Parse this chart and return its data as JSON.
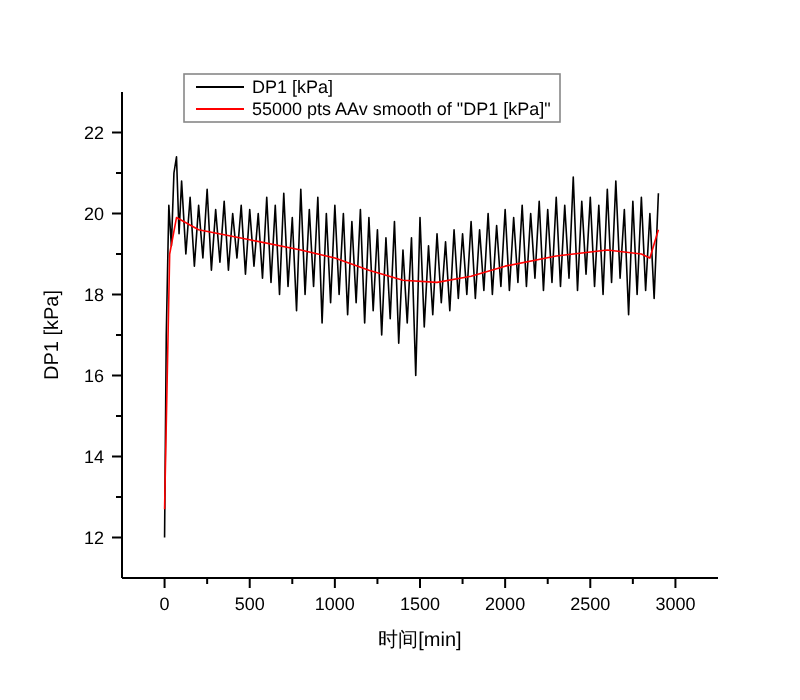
{
  "chart_data": {
    "type": "line",
    "xlabel": "时间[min]",
    "ylabel": "DP1 [kPa]",
    "xlim": [
      -250,
      3250
    ],
    "ylim": [
      11,
      23
    ],
    "xticks": [
      0,
      {
        "value": 250,
        "label": null
      },
      500,
      {
        "value": 750,
        "label": null
      },
      1000,
      {
        "value": 1250,
        "label": null
      },
      1500,
      {
        "value": 1750,
        "label": null
      },
      2000,
      {
        "value": 2250,
        "label": null
      },
      2500,
      {
        "value": 2750,
        "label": null
      },
      3000
    ],
    "yticks": [
      12,
      {
        "value": 13,
        "label": null
      },
      14,
      {
        "value": 15,
        "label": null
      },
      16,
      {
        "value": 17,
        "label": null
      },
      18,
      {
        "value": 19,
        "label": null
      },
      20,
      {
        "value": 21,
        "label": null
      },
      22
    ],
    "grid": false,
    "legend": "top left",
    "marker": "none",
    "line_style": "solid",
    "series": [
      {
        "name": "DP1 [kPa]",
        "color": "#000000",
        "x": [
          0,
          10,
          25,
          40,
          55,
          70,
          85,
          100,
          125,
          150,
          175,
          200,
          225,
          250,
          275,
          300,
          325,
          350,
          375,
          400,
          425,
          450,
          475,
          500,
          525,
          550,
          575,
          600,
          625,
          650,
          675,
          700,
          725,
          750,
          775,
          800,
          825,
          850,
          875,
          900,
          925,
          950,
          975,
          1000,
          1025,
          1050,
          1075,
          1100,
          1125,
          1150,
          1175,
          1200,
          1225,
          1250,
          1275,
          1300,
          1325,
          1350,
          1375,
          1400,
          1425,
          1450,
          1475,
          1500,
          1525,
          1550,
          1575,
          1600,
          1625,
          1650,
          1675,
          1700,
          1725,
          1750,
          1775,
          1800,
          1825,
          1850,
          1875,
          1900,
          1925,
          1950,
          1975,
          2000,
          2025,
          2050,
          2075,
          2100,
          2125,
          2150,
          2175,
          2200,
          2225,
          2250,
          2275,
          2300,
          2325,
          2350,
          2375,
          2400,
          2425,
          2450,
          2475,
          2500,
          2525,
          2550,
          2575,
          2600,
          2625,
          2650,
          2675,
          2700,
          2725,
          2750,
          2775,
          2800,
          2825,
          2850,
          2875,
          2900
        ],
        "values": [
          12,
          17,
          20.2,
          19.2,
          21.0,
          21.4,
          19.5,
          20.8,
          19.0,
          20.4,
          18.7,
          20.2,
          18.9,
          20.6,
          18.6,
          20.1,
          18.8,
          20.3,
          18.6,
          20.0,
          18.9,
          20.2,
          18.5,
          20.1,
          18.7,
          20.0,
          18.4,
          20.4,
          18.3,
          20.2,
          18.0,
          20.5,
          18.2,
          19.9,
          17.6,
          20.6,
          18.0,
          20.1,
          18.2,
          20.4,
          17.3,
          20.0,
          17.8,
          20.2,
          18.0,
          20.0,
          17.5,
          19.8,
          17.8,
          20.1,
          17.3,
          19.9,
          17.6,
          19.6,
          17.0,
          19.4,
          17.4,
          19.8,
          16.8,
          19.1,
          17.3,
          19.4,
          16.0,
          19.9,
          17.2,
          19.2,
          17.5,
          19.5,
          17.8,
          19.3,
          17.6,
          19.6,
          17.9,
          19.5,
          18.0,
          19.8,
          17.9,
          19.6,
          18.1,
          20.0,
          18.0,
          19.7,
          18.2,
          20.1,
          18.1,
          19.9,
          18.3,
          20.2,
          18.2,
          20.0,
          18.4,
          20.3,
          18.1,
          20.1,
          18.3,
          20.4,
          18.2,
          20.2,
          18.4,
          20.9,
          18.1,
          20.3,
          18.5,
          20.4,
          18.2,
          20.2,
          18.0,
          20.6,
          18.3,
          20.8,
          18.4,
          20.1,
          17.5,
          20.3,
          18.0,
          20.4,
          18.1,
          20.0,
          17.9,
          20.5
        ]
      },
      {
        "name": "55000 pts AAv smooth of \"DP1 [kPa]\"",
        "color": "#ff0000",
        "x": [
          0,
          30,
          70,
          200,
          500,
          800,
          1000,
          1200,
          1400,
          1600,
          1800,
          2000,
          2300,
          2600,
          2800,
          2850,
          2900
        ],
        "values": [
          12.7,
          19.0,
          19.9,
          19.6,
          19.35,
          19.1,
          18.9,
          18.6,
          18.35,
          18.3,
          18.45,
          18.7,
          18.95,
          19.1,
          19.0,
          18.9,
          19.6
        ]
      }
    ]
  }
}
